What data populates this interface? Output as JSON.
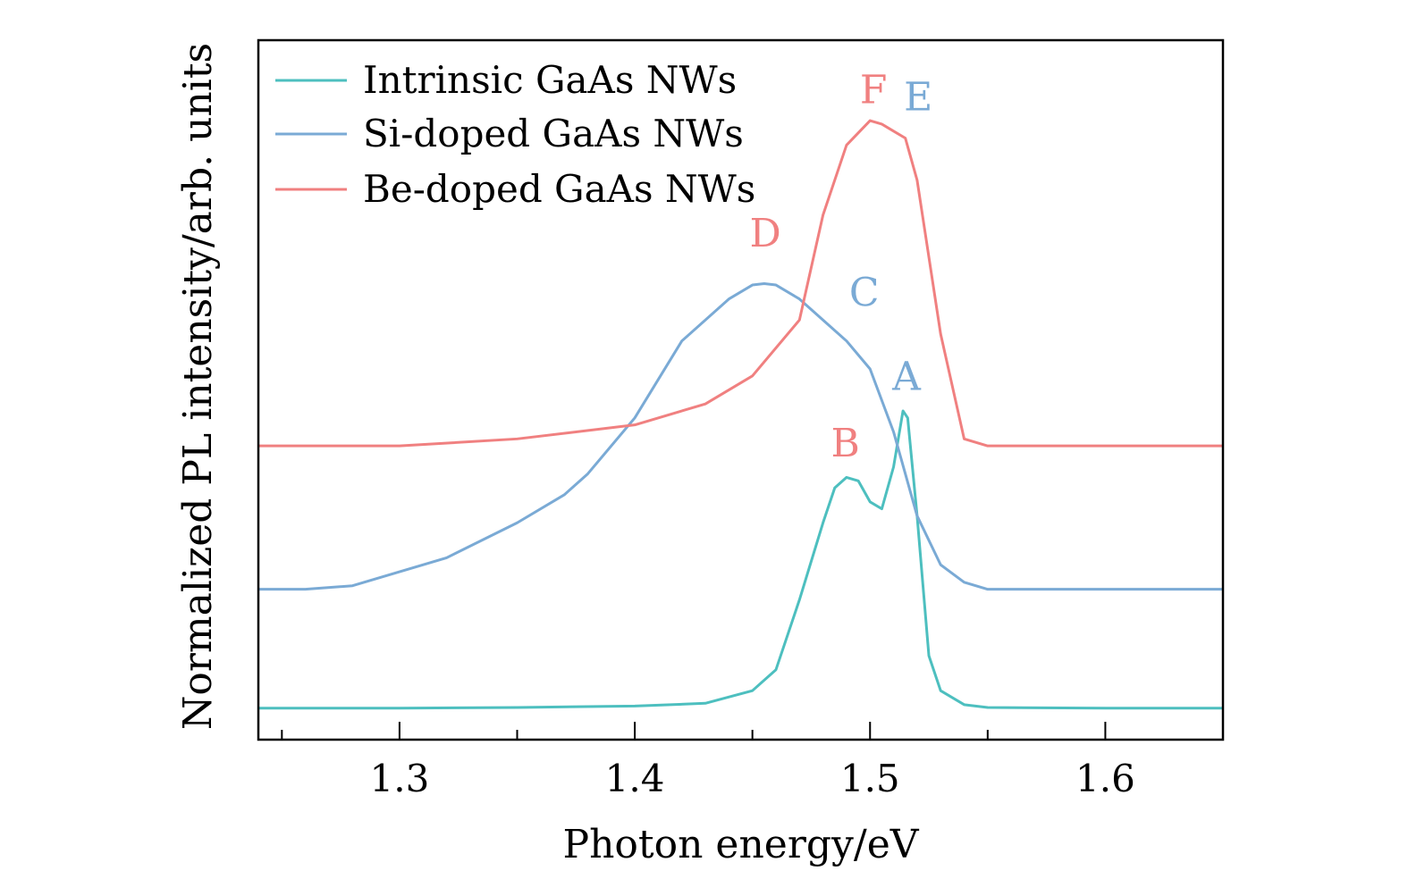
{
  "chart_data": {
    "type": "line",
    "title": "",
    "xlabel": "Photon energy/eV",
    "ylabel": "Normalized PL intensity/arb. units",
    "xlim": [
      1.24,
      1.65
    ],
    "ylim": [
      0,
      1.0
    ],
    "x_ticks": [
      1.3,
      1.4,
      1.5,
      1.6
    ],
    "x_tick_labels": [
      "1.3",
      "1.4",
      "1.5",
      "1.6"
    ],
    "y_ticks_shown": false,
    "grid": false,
    "legend_position": "top-left",
    "series": [
      {
        "name": "Intrinsic GaAs NWs",
        "color": "#4dbfbf",
        "x": [
          1.24,
          1.3,
          1.35,
          1.4,
          1.43,
          1.45,
          1.46,
          1.47,
          1.48,
          1.485,
          1.49,
          1.495,
          1.5,
          1.505,
          1.51,
          1.514,
          1.516,
          1.52,
          1.525,
          1.53,
          1.54,
          1.55,
          1.6,
          1.65
        ],
        "y": [
          0.045,
          0.045,
          0.046,
          0.048,
          0.052,
          0.07,
          0.1,
          0.2,
          0.31,
          0.36,
          0.375,
          0.37,
          0.34,
          0.33,
          0.39,
          0.47,
          0.46,
          0.32,
          0.12,
          0.07,
          0.05,
          0.046,
          0.045,
          0.045
        ]
      },
      {
        "name": "Si-doped GaAs NWs",
        "color": "#7aaad5",
        "x": [
          1.24,
          1.26,
          1.28,
          1.3,
          1.32,
          1.35,
          1.37,
          1.38,
          1.4,
          1.42,
          1.44,
          1.45,
          1.455,
          1.46,
          1.47,
          1.48,
          1.49,
          1.5,
          1.51,
          1.52,
          1.53,
          1.54,
          1.55,
          1.6,
          1.65
        ],
        "y": [
          0.215,
          0.215,
          0.22,
          0.24,
          0.26,
          0.31,
          0.35,
          0.38,
          0.46,
          0.57,
          0.63,
          0.65,
          0.652,
          0.65,
          0.63,
          0.6,
          0.57,
          0.53,
          0.44,
          0.32,
          0.25,
          0.225,
          0.215,
          0.215,
          0.215
        ]
      },
      {
        "name": "Be-doped GaAs NWs",
        "color": "#f08080",
        "x": [
          1.24,
          1.3,
          1.35,
          1.4,
          1.43,
          1.45,
          1.47,
          1.48,
          1.49,
          1.5,
          1.505,
          1.51,
          1.515,
          1.52,
          1.53,
          1.54,
          1.55,
          1.6,
          1.65
        ],
        "y": [
          0.42,
          0.42,
          0.43,
          0.45,
          0.48,
          0.52,
          0.6,
          0.75,
          0.85,
          0.885,
          0.88,
          0.87,
          0.86,
          0.8,
          0.58,
          0.43,
          0.42,
          0.42,
          0.42
        ]
      }
    ],
    "annotations": [
      {
        "text": "A",
        "x": 1.5155,
        "y": 0.5,
        "color": "#7aaad5"
      },
      {
        "text": "B",
        "x": 1.4895,
        "y": 0.405,
        "color": "#f08080"
      },
      {
        "text": "C",
        "x": 1.4975,
        "y": 0.62,
        "color": "#7aaad5"
      },
      {
        "text": "D",
        "x": 1.4555,
        "y": 0.705,
        "color": "#f08080"
      },
      {
        "text": "E",
        "x": 1.5205,
        "y": 0.9,
        "color": "#7aaad5"
      },
      {
        "text": "F",
        "x": 1.5015,
        "y": 0.91,
        "color": "#f08080"
      }
    ]
  }
}
